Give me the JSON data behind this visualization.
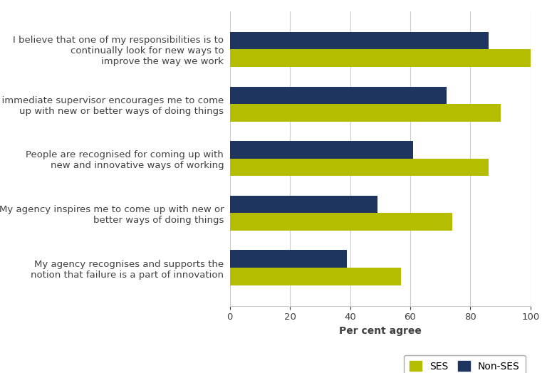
{
  "categories": [
    "I believe that one of my responsibilities is to\ncontinually look for new ways to\nimprove the way we work",
    "My immediate supervisor encourages me to come\nup with new or better ways of doing things",
    "People are recognised for coming up with\nnew and innovative ways of working",
    "My agency inspires me to come up with new or\nbetter ways of doing things",
    "My agency recognises and supports the\nnotion that failure is a part of innovation"
  ],
  "ses_values": [
    100,
    90,
    86,
    74,
    57
  ],
  "non_ses_values": [
    86,
    72,
    61,
    49,
    39
  ],
  "ses_color": "#b5bd00",
  "non_ses_color": "#1e3560",
  "xlabel": "Per cent agree",
  "xlim": [
    0,
    100
  ],
  "xticks": [
    0,
    20,
    40,
    60,
    80,
    100
  ],
  "bar_height": 0.32,
  "background_color": "#ffffff",
  "grid_color": "#cccccc",
  "text_color": "#404040",
  "legend_labels": [
    "SES",
    "Non-SES"
  ],
  "tick_fontsize": 9.5,
  "xlabel_fontsize": 10,
  "legend_fontsize": 10
}
